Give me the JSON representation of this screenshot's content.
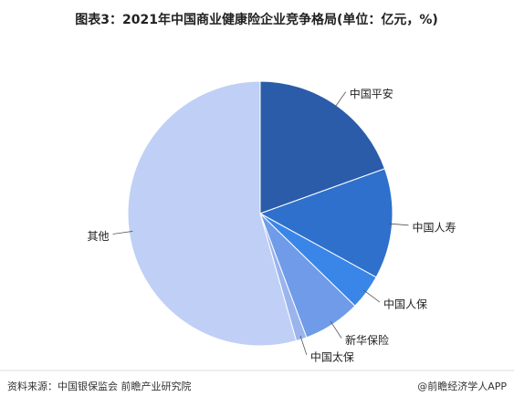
{
  "chart_data": {
    "type": "pie",
    "title": "图表3：2021年中国商业健康险企业竞争格局(单位：亿元，%)",
    "source": "资料来源：中国银保监会 前瞻产业研究院",
    "credit": "@前瞻经济学人APP",
    "categories": [
      "中国平安",
      "中国人寿",
      "中国人保",
      "新华保险",
      "中国太保",
      "其他"
    ],
    "values": [
      19.5,
      13.5,
      4.3,
      7,
      1.3,
      54.4
    ],
    "colors": [
      "#2a5caa",
      "#2e70cc",
      "#3a86e8",
      "#6f9be8",
      "#9ab4ee",
      "#c0cff5"
    ]
  }
}
